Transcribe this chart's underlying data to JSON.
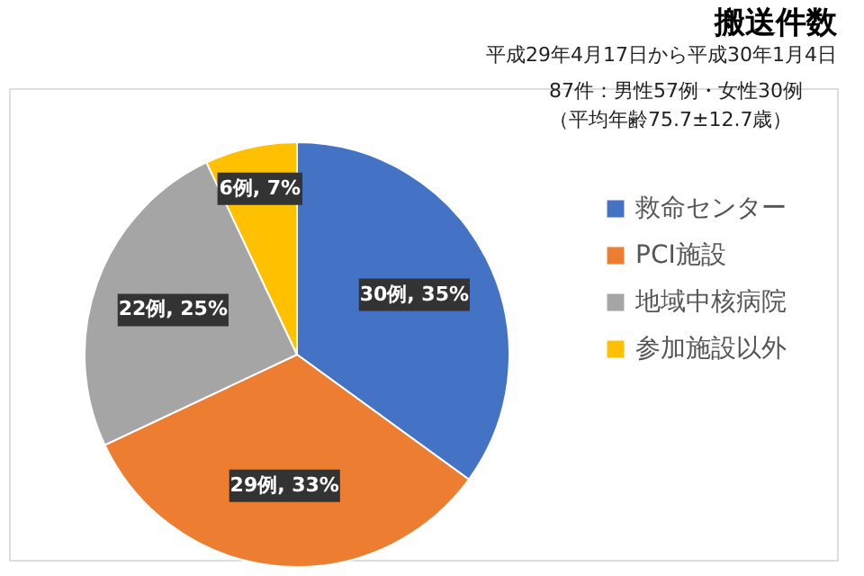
{
  "chart_data": {
    "type": "pie",
    "title": "搬送件数",
    "subtitle": "平成29年4月17日から平成30年1月4日",
    "annotations": [
      "87件：男性57例・女性30例",
      "（平均年齢75.7±12.7歳）"
    ],
    "categories": [
      "救命センター",
      "PCI施設",
      "地域中核病院",
      "参加施設以外"
    ],
    "values": [
      35,
      33,
      25,
      7
    ],
    "colors": [
      "#4472c4",
      "#ed7d31",
      "#a5a5a5",
      "#ffc000"
    ],
    "value_labels": [
      "30例, 35%",
      "29例, 33%",
      "22例, 25%",
      "6例, 7%"
    ],
    "legend": "right"
  }
}
